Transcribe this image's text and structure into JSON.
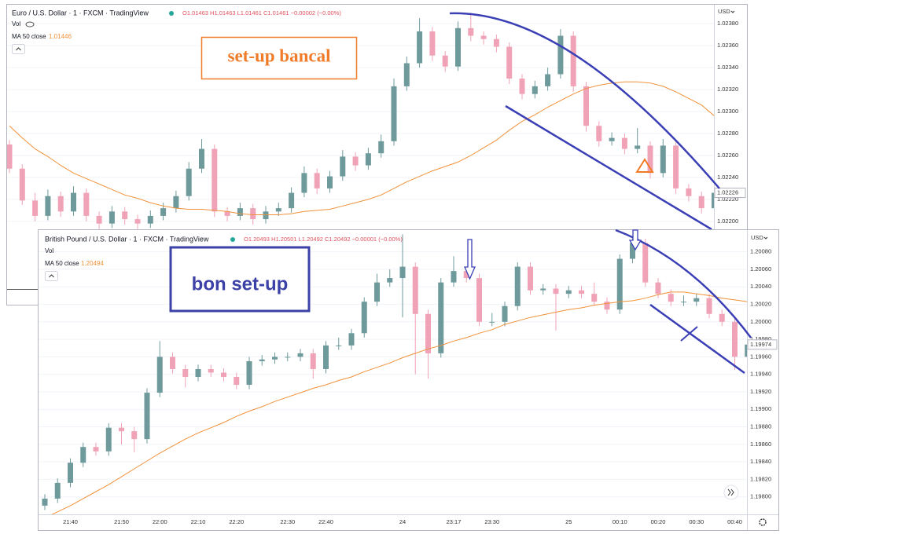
{
  "chart_data": [
    {
      "type": "candlestick",
      "title": "Euro / U.S. Dollar · 1 · FXCM · TradingView",
      "ohlc_text": "O1.01463 H1.01463 L1.01461 C1.01461 −0.00002 (−0.00%)",
      "volume_label": "Vol",
      "indicator_value": 1.01446,
      "currency": "USD",
      "last_price": 1.02226,
      "annotation": "set-up bancal",
      "up_color": "#6f9a9c",
      "down_color": "#f0a3b6",
      "ylim": [
        1.02137,
        1.02398
      ],
      "yticks": [
        {
          "value": 1.0238,
          "label": "1.02380"
        },
        {
          "value": 1.0236,
          "label": "1.02360"
        },
        {
          "value": 1.0234,
          "label": "1.02340"
        },
        {
          "value": 1.0232,
          "label": "1.02320"
        },
        {
          "value": 1.023,
          "label": "1.02300"
        },
        {
          "value": 1.0228,
          "label": "1.02280"
        },
        {
          "value": 1.0226,
          "label": "1.02260"
        },
        {
          "value": 1.0224,
          "label": "1.02240"
        },
        {
          "value": 1.0222,
          "label": "1.02220"
        },
        {
          "value": 1.022,
          "label": "1.02200"
        }
      ],
      "grid": true,
      "ohlc": [
        [
          1.0227,
          1.02274,
          1.02244,
          1.02248
        ],
        [
          1.02248,
          1.02252,
          1.02215,
          1.02219
        ],
        [
          1.02219,
          1.02226,
          1.022,
          1.02205
        ],
        [
          1.02205,
          1.02229,
          1.02201,
          1.02223
        ],
        [
          1.02223,
          1.02227,
          1.02204,
          1.02209
        ],
        [
          1.02209,
          1.02232,
          1.02205,
          1.02226
        ],
        [
          1.02226,
          1.0223,
          1.022,
          1.02205
        ],
        [
          1.02205,
          1.02209,
          1.02193,
          1.02198
        ],
        [
          1.02198,
          1.02214,
          1.02194,
          1.02209
        ],
        [
          1.02209,
          1.02213,
          1.02197,
          1.02202
        ],
        [
          1.02202,
          1.02206,
          1.02193,
          1.02198
        ],
        [
          1.02198,
          1.0221,
          1.02194,
          1.02205
        ],
        [
          1.02205,
          1.02217,
          1.02201,
          1.02212
        ],
        [
          1.02212,
          1.02228,
          1.02208,
          1.02223
        ],
        [
          1.02223,
          1.02254,
          1.02219,
          1.02248
        ],
        [
          1.02248,
          1.02275,
          1.02244,
          1.02266
        ],
        [
          1.02266,
          1.0227,
          1.02204,
          1.02209
        ],
        [
          1.02209,
          1.02213,
          1.022,
          1.02205
        ],
        [
          1.02205,
          1.02217,
          1.02201,
          1.02212
        ],
        [
          1.02212,
          1.02216,
          1.02197,
          1.02202
        ],
        [
          1.02202,
          1.02214,
          1.02198,
          1.02209
        ],
        [
          1.02209,
          1.02217,
          1.02205,
          1.02212
        ],
        [
          1.02212,
          1.02231,
          1.02208,
          1.02226
        ],
        [
          1.02226,
          1.0225,
          1.02222,
          1.02244
        ],
        [
          1.02244,
          1.02248,
          1.02225,
          1.0223
        ],
        [
          1.0223,
          1.02246,
          1.02226,
          1.02241
        ],
        [
          1.02241,
          1.02265,
          1.02237,
          1.02259
        ],
        [
          1.02259,
          1.02263,
          1.02246,
          1.02251
        ],
        [
          1.02251,
          1.02267,
          1.02247,
          1.02262
        ],
        [
          1.02262,
          1.02279,
          1.02258,
          1.02273
        ],
        [
          1.02273,
          1.0233,
          1.02269,
          1.02323
        ],
        [
          1.02323,
          1.0235,
          1.02319,
          1.02344
        ],
        [
          1.02344,
          1.02385,
          1.0234,
          1.02373
        ],
        [
          1.02373,
          1.02377,
          1.02346,
          1.02351
        ],
        [
          1.02351,
          1.02355,
          1.02336,
          1.02341
        ],
        [
          1.02341,
          1.02382,
          1.02337,
          1.02376
        ],
        [
          1.02376,
          1.0239,
          1.02364,
          1.02369
        ],
        [
          1.02369,
          1.02373,
          1.02361,
          1.02366
        ],
        [
          1.02366,
          1.0237,
          1.02354,
          1.02359
        ],
        [
          1.02359,
          1.02363,
          1.02325,
          1.0233
        ],
        [
          1.0233,
          1.02334,
          1.02311,
          1.02316
        ],
        [
          1.02316,
          1.02328,
          1.02312,
          1.02323
        ],
        [
          1.02323,
          1.0234,
          1.02319,
          1.02334
        ],
        [
          1.02334,
          1.02375,
          1.0233,
          1.02369
        ],
        [
          1.02369,
          1.02373,
          1.02318,
          1.02323
        ],
        [
          1.02323,
          1.02327,
          1.02282,
          1.02287
        ],
        [
          1.02287,
          1.02291,
          1.02268,
          1.02273
        ],
        [
          1.02273,
          1.02281,
          1.02269,
          1.02276
        ],
        [
          1.02276,
          1.0228,
          1.02261,
          1.02266
        ],
        [
          1.02266,
          1.02285,
          1.02262,
          1.02269
        ],
        [
          1.02269,
          1.02273,
          1.02239,
          1.02244
        ],
        [
          1.02244,
          1.02275,
          1.0224,
          1.02269
        ],
        [
          1.02269,
          1.02273,
          1.02225,
          1.0223
        ],
        [
          1.0223,
          1.02234,
          1.02218,
          1.02223
        ],
        [
          1.02223,
          1.02227,
          1.02207,
          1.02212
        ],
        [
          1.02212,
          1.02232,
          1.02208,
          1.02226
        ]
      ],
      "series": [
        {
          "name": "MA 50 close",
          "color": "#f0913a",
          "values": [
            1.02287,
            1.02276,
            1.02266,
            1.02259,
            1.02251,
            1.02244,
            1.02239,
            1.02234,
            1.02229,
            1.02224,
            1.02221,
            1.02217,
            1.02214,
            1.02212,
            1.02211,
            1.02211,
            1.0221,
            1.02209,
            1.02207,
            1.02206,
            1.02206,
            1.02206,
            1.02207,
            1.02209,
            1.0221,
            1.02211,
            1.02214,
            1.02217,
            1.0222,
            1.02224,
            1.0223,
            1.02236,
            1.02241,
            1.02246,
            1.0225,
            1.02254,
            1.0226,
            1.02267,
            1.02274,
            1.02283,
            1.02291,
            1.02297,
            1.02304,
            1.0231,
            1.02316,
            1.02321,
            1.02324,
            1.02326,
            1.02327,
            1.02327,
            1.02326,
            1.02323,
            1.02318,
            1.02312,
            1.02306,
            1.02296
          ]
        }
      ]
    },
    {
      "type": "candlestick",
      "title": "British Pound / U.S. Dollar · 1 · FXCM · TradingView",
      "ohlc_text": "O1.20493 H1.20501 L1.20492 C1.20492 −0.00001 (−0.00%)",
      "volume_label": "Vol",
      "indicator_value": 1.20494,
      "currency": "USD",
      "last_price": 1.19974,
      "annotation": "bon set-up",
      "up_color": "#6f9a9c",
      "down_color": "#f0a3b6",
      "ylim": [
        1.1978,
        1.20103
      ],
      "yticks": [
        {
          "value": 1.2008,
          "label": "1.20080"
        },
        {
          "value": 1.2006,
          "label": "1.20060"
        },
        {
          "value": 1.2004,
          "label": "1.20040"
        },
        {
          "value": 1.2002,
          "label": "1.20020"
        },
        {
          "value": 1.2,
          "label": "1.20000"
        },
        {
          "value": 1.1998,
          "label": "1.19980"
        },
        {
          "value": 1.1996,
          "label": "1.19960"
        },
        {
          "value": 1.1994,
          "label": "1.19940"
        },
        {
          "value": 1.1992,
          "label": "1.19920"
        },
        {
          "value": 1.199,
          "label": "1.19900"
        },
        {
          "value": 1.1988,
          "label": "1.19880"
        },
        {
          "value": 1.1986,
          "label": "1.19860"
        },
        {
          "value": 1.1984,
          "label": "1.19840"
        },
        {
          "value": 1.1982,
          "label": "1.19820"
        },
        {
          "value": 1.198,
          "label": "1.19800"
        }
      ],
      "grid": true,
      "categories": [
        null,
        null,
        "21:40",
        null,
        null,
        null,
        "21:50",
        null,
        null,
        "22:00",
        null,
        null,
        "22:10",
        null,
        null,
        "22:20",
        null,
        null,
        null,
        "22:30",
        null,
        null,
        "22:40",
        null,
        null,
        null,
        null,
        null,
        "24",
        null,
        null,
        null,
        "23:17",
        null,
        null,
        "23:30",
        null,
        null,
        null,
        null,
        null,
        "25",
        null,
        null,
        null,
        "00:10",
        null,
        null,
        "00:20",
        null,
        null,
        "00:30",
        null,
        null,
        "00:40",
        null
      ],
      "ohlc": [
        [
          1.1979,
          1.19803,
          1.19785,
          1.19798
        ],
        [
          1.19798,
          1.19821,
          1.19793,
          1.19816
        ],
        [
          1.19816,
          1.19844,
          1.19811,
          1.19839
        ],
        [
          1.19839,
          1.19862,
          1.19834,
          1.19857
        ],
        [
          1.19857,
          1.19862,
          1.19847,
          1.19852
        ],
        [
          1.19852,
          1.19884,
          1.19847,
          1.19879
        ],
        [
          1.19879,
          1.19884,
          1.1986,
          1.19875
        ],
        [
          1.19875,
          1.1988,
          1.19851,
          1.19866
        ],
        [
          1.19866,
          1.19924,
          1.19861,
          1.19919
        ],
        [
          1.19919,
          1.19978,
          1.19914,
          1.1996
        ],
        [
          1.1996,
          1.19965,
          1.19941,
          1.19946
        ],
        [
          1.19946,
          1.19951,
          1.19925,
          1.19937
        ],
        [
          1.19937,
          1.19951,
          1.19932,
          1.19946
        ],
        [
          1.19946,
          1.19951,
          1.19937,
          1.19942
        ],
        [
          1.19942,
          1.19947,
          1.19932,
          1.19937
        ],
        [
          1.19937,
          1.19942,
          1.19923,
          1.19928
        ],
        [
          1.19928,
          1.1996,
          1.19923,
          1.19955
        ],
        [
          1.19955,
          1.19962,
          1.1995,
          1.19957
        ],
        [
          1.19957,
          1.19965,
          1.19952,
          1.1996
        ],
        [
          1.1996,
          1.19965,
          1.19955,
          1.1996
        ],
        [
          1.1996,
          1.19969,
          1.19955,
          1.19964
        ],
        [
          1.19964,
          1.19969,
          1.19935,
          1.19946
        ],
        [
          1.19946,
          1.19978,
          1.19941,
          1.19973
        ],
        [
          1.19973,
          1.19982,
          1.19968,
          1.19973
        ],
        [
          1.19973,
          1.19992,
          1.19968,
          1.19987
        ],
        [
          1.19987,
          1.20028,
          1.19982,
          1.20023
        ],
        [
          1.20023,
          1.20055,
          1.20018,
          1.20045
        ],
        [
          1.20045,
          1.2006,
          1.2004,
          1.2005
        ],
        [
          1.2005,
          1.201,
          1.20005,
          1.20063
        ],
        [
          1.20063,
          1.20068,
          1.1994,
          1.20009
        ],
        [
          1.20009,
          1.20014,
          1.19935,
          1.19964
        ],
        [
          1.19964,
          1.2005,
          1.19959,
          1.20045
        ],
        [
          1.20045,
          1.20075,
          1.2004,
          1.20058
        ],
        [
          1.20058,
          1.20063,
          1.20045,
          1.2005
        ],
        [
          1.2005,
          1.20055,
          1.19995,
          1.2
        ],
        [
          1.2,
          1.2001,
          1.19995,
          1.2
        ],
        [
          1.2,
          1.20023,
          1.19995,
          1.20018
        ],
        [
          1.20018,
          1.20068,
          1.20013,
          1.20063
        ],
        [
          1.20063,
          1.20068,
          1.20031,
          1.20036
        ],
        [
          1.20036,
          1.20043,
          1.20031,
          1.20038
        ],
        [
          1.20038,
          1.20043,
          1.1999,
          1.20032
        ],
        [
          1.20032,
          1.20041,
          1.20027,
          1.20036
        ],
        [
          1.20036,
          1.20041,
          1.20027,
          1.20032
        ],
        [
          1.20032,
          1.20045,
          1.20018,
          1.20023
        ],
        [
          1.20023,
          1.20028,
          1.20009,
          1.20014
        ],
        [
          1.20014,
          1.20077,
          1.20009,
          1.20072
        ],
        [
          1.20072,
          1.20095,
          1.20067,
          1.2009
        ],
        [
          1.2009,
          1.20095,
          1.2004,
          1.20045
        ],
        [
          1.20045,
          1.2005,
          1.20027,
          1.20032
        ],
        [
          1.20032,
          1.20037,
          1.20018,
          1.20023
        ],
        [
          1.20023,
          1.2003,
          1.20018,
          1.20023
        ],
        [
          1.20023,
          1.20032,
          1.20018,
          1.20027
        ],
        [
          1.20027,
          1.20032,
          1.20004,
          1.20009
        ],
        [
          1.20009,
          1.20014,
          1.19995,
          1.2
        ],
        [
          1.2,
          1.20005,
          1.19945,
          1.1996
        ],
        [
          1.1996,
          1.19979,
          1.19955,
          1.19974
        ]
      ],
      "series": [
        {
          "name": "MA 50 close",
          "color": "#f0913a",
          "values": [
            1.19776,
            1.19783,
            1.1979,
            1.19798,
            1.19806,
            1.19814,
            1.19823,
            1.19832,
            1.19841,
            1.1985,
            1.19858,
            1.19866,
            1.19873,
            1.19879,
            1.19885,
            1.19892,
            1.19898,
            1.19903,
            1.19909,
            1.19914,
            1.19919,
            1.19924,
            1.19928,
            1.19933,
            1.19937,
            1.19943,
            1.19948,
            1.19953,
            1.19959,
            1.19964,
            1.19969,
            1.19973,
            1.19978,
            1.19982,
            1.19987,
            1.19991,
            1.19997,
            1.20001,
            1.20005,
            1.20008,
            1.20011,
            1.20014,
            1.20016,
            1.20019,
            1.20021,
            1.20023,
            1.20024,
            1.20027,
            1.20031,
            1.20034,
            1.20034,
            1.20032,
            1.2003,
            1.20027,
            1.20025,
            1.20023
          ]
        }
      ]
    }
  ]
}
